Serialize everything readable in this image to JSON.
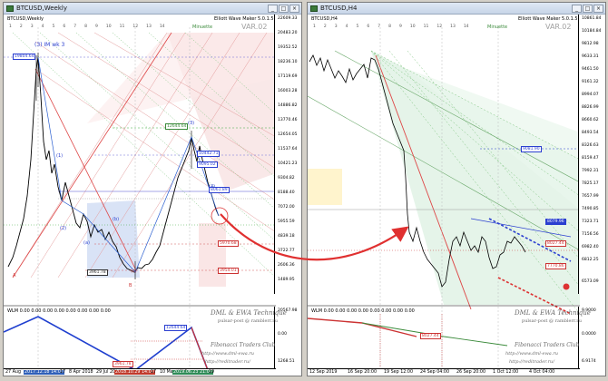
{
  "left_window": {
    "title": "BTCUSD,Weekly",
    "symbol_label": "BTCUSD,Weekly",
    "indicator_label": "Elliott Wave Maker 5.0.1.5",
    "var_label": "VAR.02",
    "timeframe_tag": "Minuette",
    "wave_degree_label": "(3) IM wk 3",
    "price_ticks": [
      "22609.33",
      "20483.20",
      "19352.52",
      "18236.10",
      "17119.69",
      "16003.28",
      "14886.82",
      "13770.46",
      "12654.05",
      "11537.64",
      "10421.23",
      "9304.82",
      "8188.40",
      "7072.00",
      "5955.59",
      "4839.18",
      "3722.77",
      "2606.36",
      "1489.95"
    ],
    "time_ticks": [
      {
        "label": "27 Aug",
        "style": ""
      },
      {
        "label": "2017.12.18 14:00",
        "style": "hl"
      },
      {
        "label": "17",
        "style": ""
      },
      {
        "label": "8 Apr 2018",
        "style": ""
      },
      {
        "label": "29 Jul 2018",
        "style": ""
      },
      {
        "label": "2018.10.29 14:00",
        "style": "hlr"
      },
      {
        "label": "17",
        "style": ""
      },
      {
        "label": "10 Mar 2019",
        "style": ""
      },
      {
        "label": "2019.06.23 21:00",
        "style": "hlg"
      },
      {
        "label": "19",
        "style": ""
      }
    ],
    "price_boxes": [
      "19804.64",
      "12644.64",
      "10442.71",
      "9095.02",
      "8061.89",
      "5970.68",
      "3954.01",
      "3961.78"
    ],
    "wave_labels": [
      "(3)",
      "(1)",
      "(2)",
      "(3)",
      "(4)",
      "(5)",
      "(a)",
      "(b)",
      "(c)",
      "A",
      "B"
    ],
    "subwindow_label": "WLM 0.00 0.00 0.00 0.00 0.00 0.00 0.00 0.00",
    "sub_price_ticks": [
      "20567.98",
      "0.00",
      "1268.51"
    ],
    "sub_boxes": [
      "12644.64",
      "3961.78"
    ],
    "watermark_title": "DML & EWA Technique",
    "watermark_sub": "pulsar-post @ ramblerr.ru",
    "watermark_club": "Fibonacci Traders Club",
    "watermark_url1": "http://www.dml-ewa.ru",
    "watermark_url2": "http://reditrader.ru/",
    "legend_items": [
      "1",
      "2",
      "3",
      "4",
      "5",
      "6",
      "7",
      "8",
      "9",
      "10",
      "11",
      "12",
      "13",
      "14"
    ]
  },
  "right_window": {
    "title": "BTCUSD,H4",
    "symbol_label": "BTCUSD,H4",
    "indicator_label": "Elliott Wave Maker 5.0.1.5",
    "var_label": "VAR.02",
    "timeframe_tag": "Minuette",
    "price_ticks": [
      "10861.84",
      "10184.84",
      "9812.98",
      "9633.31",
      "9461.50",
      "9161.32",
      "8994.07",
      "8826.99",
      "8660.62",
      "8493.54",
      "8326.63",
      "8159.47",
      "7992.31",
      "7825.17",
      "7657.99",
      "7490.85",
      "7323.71",
      "7156.56",
      "6982.40",
      "6812.25",
      "6573.09"
    ],
    "time_ticks": [
      {
        "label": "12 Sep 2019",
        "style": ""
      },
      {
        "label": "16 Sep 20:00",
        "style": ""
      },
      {
        "label": "19 Sep 12:00",
        "style": ""
      },
      {
        "label": "24 Sep 04:00",
        "style": ""
      },
      {
        "label": "26 Sep 20:00",
        "style": ""
      },
      {
        "label": "1 Oct 12:00",
        "style": ""
      },
      {
        "label": "4 Oct 04:00",
        "style": ""
      }
    ],
    "price_boxes": [
      "9081.90",
      "8079.96",
      "8027.44",
      "7770.86"
    ],
    "legend_items": [
      "1",
      "2",
      "3",
      "4",
      "5",
      "6",
      "7",
      "8",
      "9",
      "10",
      "11",
      "12",
      "13",
      "14"
    ],
    "subwindow_label": "WLM 0.00 0.00 0.00 0.00 0.00 0.00 0.00 0.00",
    "sub_price_ticks": [
      "9.9000",
      "0.0000",
      "6.9174"
    ],
    "sub_boxes": [
      "8027.44"
    ],
    "watermark_title": "DML & EWA Technique",
    "watermark_sub": "pulsar-post @ ramblerr.ru",
    "watermark_club": "Fibonacci Traders Club",
    "watermark_url1": "http://www.dml-ewa.ru",
    "watermark_url2": "http://reditrader.ru/"
  }
}
